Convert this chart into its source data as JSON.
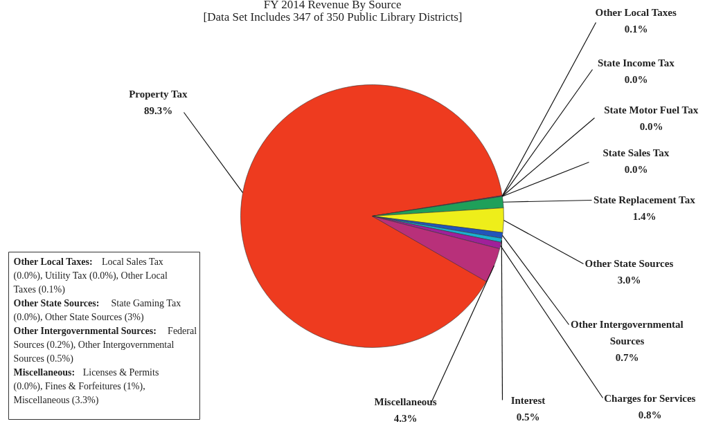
{
  "chart_data": {
    "type": "pie",
    "title": "FY 2014 Revenue By Source",
    "subtitle": "[Data Set Includes 347 of 350 Public Library Districts]",
    "categories": [
      "Property Tax",
      "Other Local Taxes",
      "State Income Tax",
      "State Motor Fuel Tax",
      "State Sales Tax",
      "State Replacement Tax",
      "Other State Sources",
      "Other Intergovernmental Sources",
      "Interest",
      "Charges for Services",
      "Miscellaneous"
    ],
    "values": [
      89.3,
      0.1,
      0.0,
      0.0,
      0.0,
      1.4,
      3.0,
      0.7,
      0.5,
      0.8,
      4.3
    ],
    "value_labels": [
      "89.3%",
      "0.1%",
      "0.0%",
      "0.0%",
      "0.0%",
      "1.4%",
      "3.0%",
      "0.7%",
      "0.5%",
      "0.8%",
      "4.3%"
    ],
    "colors": [
      "#ee3b1f",
      "#6b2a6b",
      "#808080",
      "#808080",
      "#808080",
      "#1fa05a",
      "#eeee1a",
      "#2255bb",
      "#1ab0d0",
      "#a0209a",
      "#b8307a"
    ],
    "annotations": [
      "Other Local Taxes: Local Sales Tax (0.0%), Utility Tax (0.0%), Other Local Taxes (0.1%)",
      "Other State Sources: State Gaming Tax (0.0%), Other State Sources (3%)",
      "Other Intergovernmental Sources: Federal Sources (0.2%), Other Intergovernmental Sources (0.5%)",
      "Miscellaneous: Licenses & Permits (0.0%), Fines & Forfeitures (1%), Miscellaneous (3.3%)"
    ]
  }
}
